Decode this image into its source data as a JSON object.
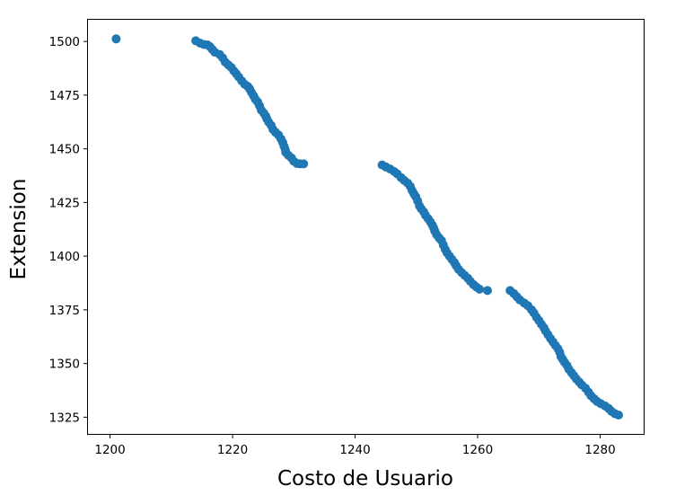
{
  "chart_data": {
    "type": "scatter",
    "title": "",
    "xlabel": "Costo de Usuario",
    "ylabel": "Extension",
    "xlim": [
      1196.4,
      1287.1
    ],
    "ylim": [
      1317.2,
      1510.1
    ],
    "xticks": [
      1200,
      1220,
      1240,
      1260,
      1280
    ],
    "yticks": [
      1325,
      1350,
      1375,
      1400,
      1425,
      1450,
      1475,
      1500
    ],
    "grid": false,
    "legend": "none",
    "marker_color": "#1f77b4",
    "series": [
      {
        "points": [
          [
            1201.0,
            1501.2
          ],
          [
            1214.0,
            1500.3
          ],
          [
            1214.7,
            1499.2
          ],
          [
            1215.3,
            1498.6
          ],
          [
            1215.9,
            1498.4
          ],
          [
            1216.3,
            1497.6
          ],
          [
            1216.7,
            1496.3
          ],
          [
            1217.1,
            1495.0
          ],
          [
            1217.9,
            1493.9
          ],
          [
            1218.4,
            1492.3
          ],
          [
            1218.8,
            1490.4
          ],
          [
            1219.3,
            1489.1
          ],
          [
            1219.8,
            1487.9
          ],
          [
            1220.2,
            1486.3
          ],
          [
            1220.6,
            1484.9
          ],
          [
            1221.0,
            1483.5
          ],
          [
            1221.5,
            1481.6
          ],
          [
            1222.0,
            1480.0
          ],
          [
            1222.5,
            1479.0
          ],
          [
            1222.8,
            1477.8
          ],
          [
            1223.1,
            1476.2
          ],
          [
            1223.4,
            1474.8
          ],
          [
            1223.7,
            1473.2
          ],
          [
            1224.1,
            1471.8
          ],
          [
            1224.4,
            1470.0
          ],
          [
            1224.7,
            1468.0
          ],
          [
            1225.1,
            1466.6
          ],
          [
            1225.4,
            1465.3
          ],
          [
            1225.6,
            1463.9
          ],
          [
            1225.9,
            1462.4
          ],
          [
            1226.3,
            1460.9
          ],
          [
            1226.6,
            1459.0
          ],
          [
            1227.0,
            1457.7
          ],
          [
            1227.5,
            1456.4
          ],
          [
            1227.9,
            1454.6
          ],
          [
            1228.2,
            1452.9
          ],
          [
            1228.4,
            1451.2
          ],
          [
            1228.6,
            1449.6
          ],
          [
            1228.7,
            1448.3
          ],
          [
            1229.1,
            1447.0
          ],
          [
            1229.6,
            1445.8
          ],
          [
            1230.0,
            1444.2
          ],
          [
            1230.5,
            1443.2
          ],
          [
            1231.0,
            1443.0
          ],
          [
            1231.6,
            1443.0
          ],
          [
            1244.4,
            1442.5
          ],
          [
            1245.0,
            1441.6
          ],
          [
            1245.7,
            1440.6
          ],
          [
            1246.4,
            1439.4
          ],
          [
            1246.9,
            1438.3
          ],
          [
            1247.5,
            1436.6
          ],
          [
            1248.0,
            1435.3
          ],
          [
            1248.6,
            1434.0
          ],
          [
            1249.0,
            1432.5
          ],
          [
            1249.3,
            1430.6
          ],
          [
            1249.6,
            1429.0
          ],
          [
            1249.9,
            1427.7
          ],
          [
            1250.2,
            1425.7
          ],
          [
            1250.5,
            1423.4
          ],
          [
            1250.8,
            1422.0
          ],
          [
            1251.2,
            1420.6
          ],
          [
            1251.5,
            1419.0
          ],
          [
            1251.9,
            1417.5
          ],
          [
            1252.3,
            1415.9
          ],
          [
            1252.6,
            1414.5
          ],
          [
            1252.8,
            1413.3
          ],
          [
            1253.0,
            1411.7
          ],
          [
            1253.3,
            1410.0
          ],
          [
            1253.7,
            1408.5
          ],
          [
            1254.1,
            1407.2
          ],
          [
            1254.4,
            1405.2
          ],
          [
            1254.7,
            1403.2
          ],
          [
            1255.0,
            1401.6
          ],
          [
            1255.4,
            1400.0
          ],
          [
            1255.8,
            1398.5
          ],
          [
            1256.2,
            1397.0
          ],
          [
            1256.5,
            1395.5
          ],
          [
            1256.9,
            1393.8
          ],
          [
            1257.4,
            1392.3
          ],
          [
            1257.9,
            1391.0
          ],
          [
            1258.4,
            1389.7
          ],
          [
            1258.8,
            1388.3
          ],
          [
            1259.3,
            1386.8
          ],
          [
            1259.8,
            1385.6
          ],
          [
            1260.3,
            1384.6
          ],
          [
            1261.6,
            1384.0
          ],
          [
            1265.3,
            1384.0
          ],
          [
            1265.9,
            1382.6
          ],
          [
            1266.4,
            1381.1
          ],
          [
            1266.9,
            1379.6
          ],
          [
            1267.6,
            1378.2
          ],
          [
            1268.2,
            1376.9
          ],
          [
            1268.8,
            1375.0
          ],
          [
            1269.2,
            1373.5
          ],
          [
            1269.6,
            1371.5
          ],
          [
            1270.0,
            1370.0
          ],
          [
            1270.4,
            1368.3
          ],
          [
            1270.8,
            1366.7
          ],
          [
            1271.1,
            1365.1
          ],
          [
            1271.5,
            1363.4
          ],
          [
            1271.9,
            1361.6
          ],
          [
            1272.3,
            1360.0
          ],
          [
            1272.7,
            1358.4
          ],
          [
            1273.1,
            1356.9
          ],
          [
            1273.4,
            1355.2
          ],
          [
            1273.6,
            1353.2
          ],
          [
            1273.9,
            1351.9
          ],
          [
            1274.2,
            1350.5
          ],
          [
            1274.6,
            1349.0
          ],
          [
            1274.9,
            1347.3
          ],
          [
            1275.3,
            1345.8
          ],
          [
            1275.7,
            1344.3
          ],
          [
            1276.1,
            1342.8
          ],
          [
            1276.6,
            1341.3
          ],
          [
            1277.0,
            1340.0
          ],
          [
            1277.6,
            1338.5
          ],
          [
            1278.1,
            1336.6
          ],
          [
            1278.5,
            1335.0
          ],
          [
            1279.0,
            1333.6
          ],
          [
            1279.5,
            1332.3
          ],
          [
            1280.1,
            1331.3
          ],
          [
            1280.8,
            1330.2
          ],
          [
            1281.4,
            1329.0
          ],
          [
            1281.9,
            1327.6
          ],
          [
            1282.4,
            1326.6
          ],
          [
            1283.0,
            1326.0
          ]
        ]
      }
    ]
  }
}
